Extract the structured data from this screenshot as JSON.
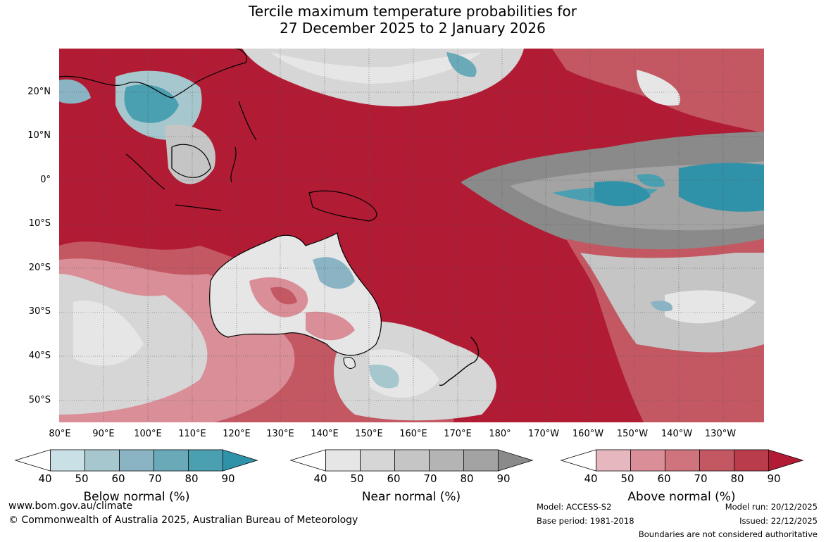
{
  "title": {
    "line1": "Tercile maximum temperature probabilities for",
    "line2": "27 December 2025 to 2 January 2026"
  },
  "axes": {
    "lat_labels": [
      "20°N",
      "10°N",
      "0°",
      "10°S",
      "20°S",
      "30°S",
      "40°S",
      "50°S"
    ],
    "lon_labels": [
      "80°E",
      "90°E",
      "100°E",
      "110°E",
      "120°E",
      "130°E",
      "140°E",
      "150°E",
      "160°E",
      "170°E",
      "180°",
      "170°W",
      "160°W",
      "150°W",
      "140°W",
      "130°W"
    ]
  },
  "legend": {
    "below": {
      "label": "Below normal (%)",
      "ticks": [
        "40",
        "50",
        "60",
        "70",
        "80",
        "90"
      ],
      "colors": [
        "#ffffff",
        "#c8e0e6",
        "#a6c7cd",
        "#8ab4c3",
        "#6aaab8",
        "#4a9fb1",
        "#2f92a8"
      ]
    },
    "near": {
      "label": "Near normal (%)",
      "ticks": [
        "40",
        "50",
        "60",
        "70",
        "80",
        "90"
      ],
      "colors": [
        "#ffffff",
        "#e6e6e6",
        "#d6d6d6",
        "#c5c5c5",
        "#b4b4b4",
        "#a3a3a3",
        "#8a8a8a"
      ]
    },
    "above": {
      "label": "Above normal (%)",
      "ticks": [
        "40",
        "50",
        "60",
        "70",
        "80",
        "90"
      ],
      "colors": [
        "#ffffff",
        "#e6b7be",
        "#d98e98",
        "#cf737c",
        "#c35863",
        "#b93c4c",
        "#b11c34"
      ]
    }
  },
  "footer": {
    "website": "www.bom.gov.au/climate",
    "copyright": "© Commonwealth of Australia 2025, Australian Bureau of Meteorology",
    "model": "Model: ACCESS-S2",
    "base_period": "Base period: 1981-2018",
    "model_run": "Model run: 20/12/2025",
    "issued": "Issued: 22/12/2025",
    "disclaimer": "Boundaries are not considered authoritative"
  }
}
